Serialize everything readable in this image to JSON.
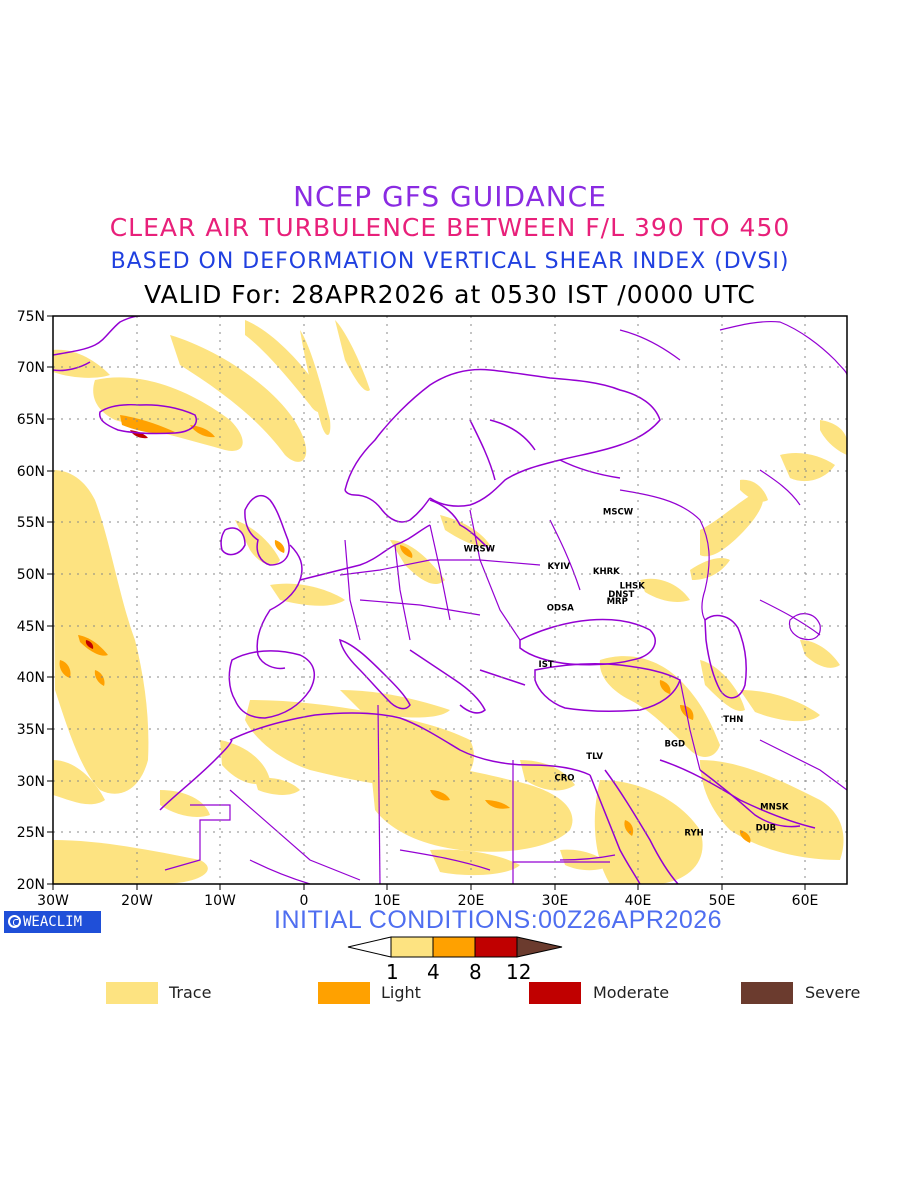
{
  "title": {
    "line1": "NCEP GFS GUIDANCE",
    "line2": "CLEAR AIR TURBULENCE BETWEEN F/L 390 TO 450",
    "line3": "BASED ON DEFORMATION VERTICAL SHEAR INDEX (DVSI)",
    "line4": "VALID For: 28APR2026 at 0530 IST /0000 UTC"
  },
  "axes": {
    "lat_labels": [
      "75N",
      "70N",
      "65N",
      "60N",
      "55N",
      "50N",
      "45N",
      "40N",
      "35N",
      "30N",
      "25N",
      "20N"
    ],
    "lon_labels": [
      "30W",
      "20W",
      "10W",
      "0",
      "10E",
      "20E",
      "30E",
      "40E",
      "50E",
      "60E"
    ],
    "lon_range": [
      -30,
      65
    ],
    "lat_range": [
      20,
      75
    ],
    "grid": "dotted"
  },
  "cities": [
    {
      "name": "MSCW",
      "lon": 37.6,
      "lat": 55.8
    },
    {
      "name": "WRSW",
      "lon": 21.0,
      "lat": 52.2
    },
    {
      "name": "KYIV",
      "lon": 30.5,
      "lat": 50.5
    },
    {
      "name": "KHRK",
      "lon": 36.2,
      "lat": 50.0
    },
    {
      "name": "LHSK",
      "lon": 39.3,
      "lat": 48.6
    },
    {
      "name": "DNST",
      "lon": 38.0,
      "lat": 47.8
    },
    {
      "name": "MRP",
      "lon": 37.5,
      "lat": 47.1
    },
    {
      "name": "ODSA",
      "lon": 30.7,
      "lat": 46.5
    },
    {
      "name": "IST",
      "lon": 29.0,
      "lat": 41.0
    },
    {
      "name": "TLV",
      "lon": 34.8,
      "lat": 32.1
    },
    {
      "name": "CRO",
      "lon": 31.2,
      "lat": 30.0
    },
    {
      "name": "BGD",
      "lon": 44.4,
      "lat": 33.3
    },
    {
      "name": "THN",
      "lon": 51.4,
      "lat": 35.7
    },
    {
      "name": "MNSK",
      "lon": 56.3,
      "lat": 27.2
    },
    {
      "name": "DUB",
      "lon": 55.3,
      "lat": 25.2
    },
    {
      "name": "RYH",
      "lon": 46.7,
      "lat": 24.7
    }
  ],
  "badge": {
    "text": "WEACLIM"
  },
  "initial_conditions": "INITIAL CONDITIONS:00Z26APR2026",
  "colorbar": {
    "ticks": [
      "1",
      "4",
      "8",
      "12"
    ],
    "colors": [
      "#ffffff",
      "#fde381",
      "#ffa100",
      "#c00000",
      "#6b3b2e"
    ]
  },
  "legend": [
    {
      "label": "Trace",
      "color": "#fde381"
    },
    {
      "label": "Light",
      "color": "#ffa100"
    },
    {
      "label": "Moderate",
      "color": "#c00000"
    },
    {
      "label": "Severe",
      "color": "#6b3b2e"
    }
  ],
  "colors": {
    "coastline": "#9400d3",
    "trace": "#fde381",
    "light": "#ffa100",
    "moderate": "#c00000"
  }
}
